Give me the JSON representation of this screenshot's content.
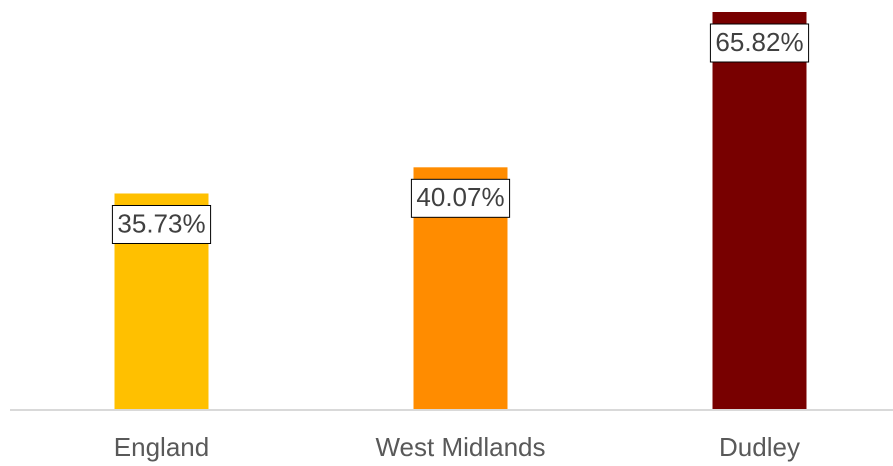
{
  "chart_data": {
    "type": "bar",
    "categories": [
      "England",
      "West Midlands",
      "Dudley"
    ],
    "values": [
      35.73,
      40.07,
      65.82
    ],
    "value_labels": [
      "35.73%",
      "40.07%",
      "65.82%"
    ],
    "colors": [
      "#ffc000",
      "#ff8c00",
      "#780000"
    ]
  }
}
